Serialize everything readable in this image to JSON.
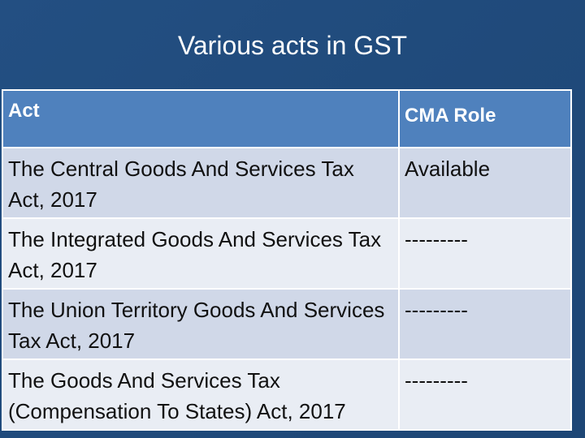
{
  "title": "Various acts in GST",
  "table": {
    "header": [
      "Act",
      "CMA Role"
    ],
    "rows": [
      [
        "The Central Goods And Services Tax Act, 2017",
        "Available"
      ],
      [
        "The Integrated Goods And Services Tax Act, 2017",
        "---------"
      ],
      [
        "The Union Territory Goods And Services Tax Act, 2017",
        "---------"
      ],
      [
        "The Goods And Services Tax (Compensation To States) Act, 2017",
        "---------"
      ]
    ]
  }
}
